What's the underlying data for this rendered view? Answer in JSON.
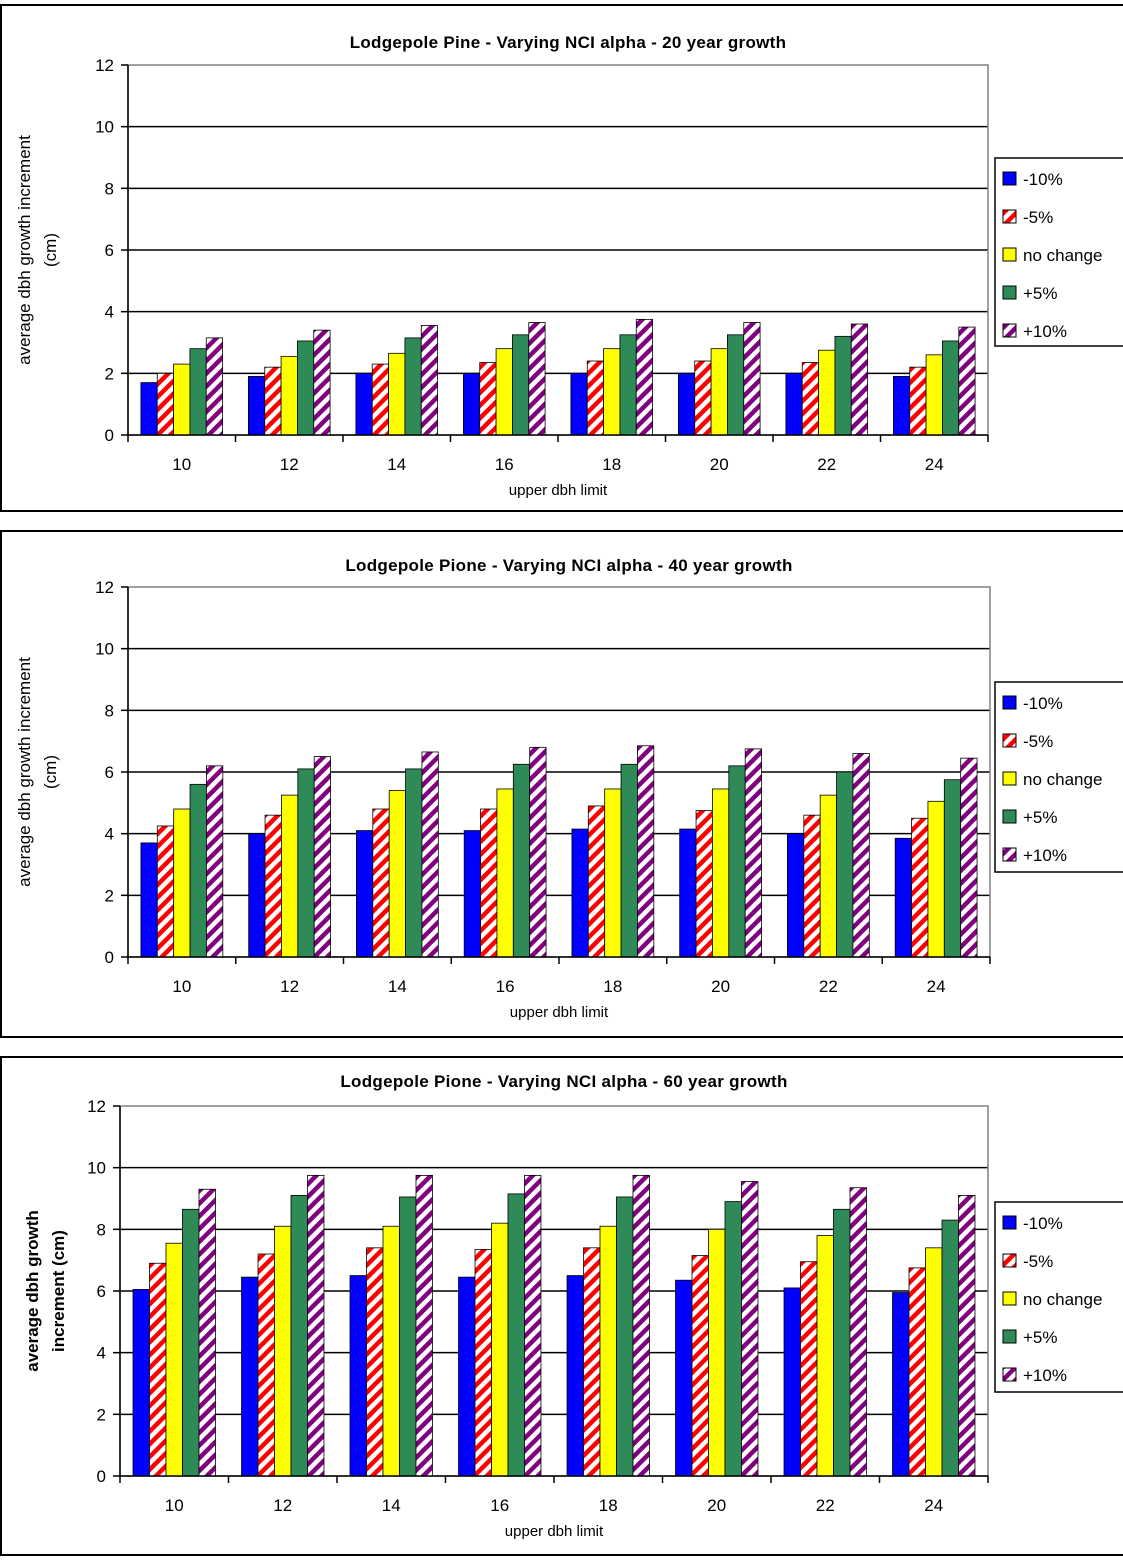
{
  "chart_data": [
    {
      "type": "bar",
      "title": "Lodgepole Pine - Varying NCI alpha - 20 year growth",
      "xlabel": "upper dbh limit",
      "ylabel": "average dbh growth increment (cm)",
      "ylim": [
        0,
        12
      ],
      "yticks": [
        "0",
        "2",
        "4",
        "6",
        "8",
        "10",
        "12"
      ],
      "grid": true,
      "legend": "right",
      "categories": [
        "10",
        "12",
        "14",
        "16",
        "18",
        "20",
        "22",
        "24"
      ],
      "series": [
        {
          "name": "-10%",
          "color": "#0000ff",
          "pattern": "solid",
          "values": [
            1.7,
            1.9,
            2.0,
            2.0,
            2.0,
            2.0,
            2.0,
            1.9
          ]
        },
        {
          "name": "-5%",
          "color": "#ff0000",
          "pattern": "diagonal-stripes",
          "values": [
            2.0,
            2.2,
            2.3,
            2.35,
            2.4,
            2.4,
            2.35,
            2.2
          ]
        },
        {
          "name": "no change",
          "color": "#ffff00",
          "pattern": "solid",
          "values": [
            2.3,
            2.55,
            2.65,
            2.8,
            2.8,
            2.8,
            2.75,
            2.6
          ]
        },
        {
          "name": "+5%",
          "color": "#2e8b57",
          "pattern": "solid",
          "values": [
            2.8,
            3.05,
            3.15,
            3.25,
            3.25,
            3.25,
            3.2,
            3.05
          ]
        },
        {
          "name": "+10%",
          "color": "#800080",
          "pattern": "diagonal-stripes",
          "values": [
            3.15,
            3.4,
            3.55,
            3.65,
            3.75,
            3.65,
            3.6,
            3.5
          ]
        }
      ]
    },
    {
      "type": "bar",
      "title": "Lodgepole Pione - Varying NCI alpha - 40 year growth",
      "xlabel": "upper dbh limit",
      "ylabel": "average dbh growth increment (cm)",
      "ylim": [
        0,
        12
      ],
      "yticks": [
        "0",
        "2",
        "4",
        "6",
        "8",
        "10",
        "12"
      ],
      "grid": true,
      "legend": "right",
      "categories": [
        "10",
        "12",
        "14",
        "16",
        "18",
        "20",
        "22",
        "24"
      ],
      "series": [
        {
          "name": "-10%",
          "color": "#0000ff",
          "pattern": "solid",
          "values": [
            3.7,
            4.0,
            4.1,
            4.1,
            4.15,
            4.15,
            4.0,
            3.85
          ]
        },
        {
          "name": "-5%",
          "color": "#ff0000",
          "pattern": "diagonal-stripes",
          "values": [
            4.25,
            4.6,
            4.8,
            4.8,
            4.9,
            4.75,
            4.6,
            4.5
          ]
        },
        {
          "name": "no change",
          "color": "#ffff00",
          "pattern": "solid",
          "values": [
            4.8,
            5.25,
            5.4,
            5.45,
            5.45,
            5.45,
            5.25,
            5.05
          ]
        },
        {
          "name": "+5%",
          "color": "#2e8b57",
          "pattern": "solid",
          "values": [
            5.6,
            6.1,
            6.1,
            6.25,
            6.25,
            6.2,
            6.0,
            5.75
          ]
        },
        {
          "name": "+10%",
          "color": "#800080",
          "pattern": "diagonal-stripes",
          "values": [
            6.2,
            6.5,
            6.65,
            6.8,
            6.85,
            6.75,
            6.6,
            6.45
          ]
        }
      ]
    },
    {
      "type": "bar",
      "title": "Lodgepole Pione - Varying NCI alpha - 60 year growth",
      "xlabel": "upper dbh limit",
      "ylabel": "average dbh growth increment (cm)",
      "ylim": [
        0,
        12
      ],
      "yticks": [
        "0",
        "2",
        "4",
        "6",
        "8",
        "10",
        "12"
      ],
      "grid": true,
      "legend": "right",
      "categories": [
        "10",
        "12",
        "14",
        "16",
        "18",
        "20",
        "22",
        "24"
      ],
      "series": [
        {
          "name": "-10%",
          "color": "#0000ff",
          "pattern": "solid",
          "values": [
            6.05,
            6.45,
            6.5,
            6.45,
            6.5,
            6.35,
            6.1,
            5.95
          ]
        },
        {
          "name": "-5%",
          "color": "#ff0000",
          "pattern": "diagonal-stripes",
          "values": [
            6.9,
            7.2,
            7.4,
            7.35,
            7.4,
            7.15,
            6.95,
            6.75
          ]
        },
        {
          "name": "no change",
          "color": "#ffff00",
          "pattern": "solid",
          "values": [
            7.55,
            8.1,
            8.1,
            8.2,
            8.1,
            8.0,
            7.8,
            7.4
          ]
        },
        {
          "name": "+5%",
          "color": "#2e8b57",
          "pattern": "solid",
          "values": [
            8.65,
            9.1,
            9.05,
            9.15,
            9.05,
            8.9,
            8.65,
            8.3
          ]
        },
        {
          "name": "+10%",
          "color": "#800080",
          "pattern": "diagonal-stripes",
          "values": [
            9.3,
            9.75,
            9.75,
            9.75,
            9.75,
            9.55,
            9.35,
            9.1
          ]
        }
      ]
    }
  ]
}
